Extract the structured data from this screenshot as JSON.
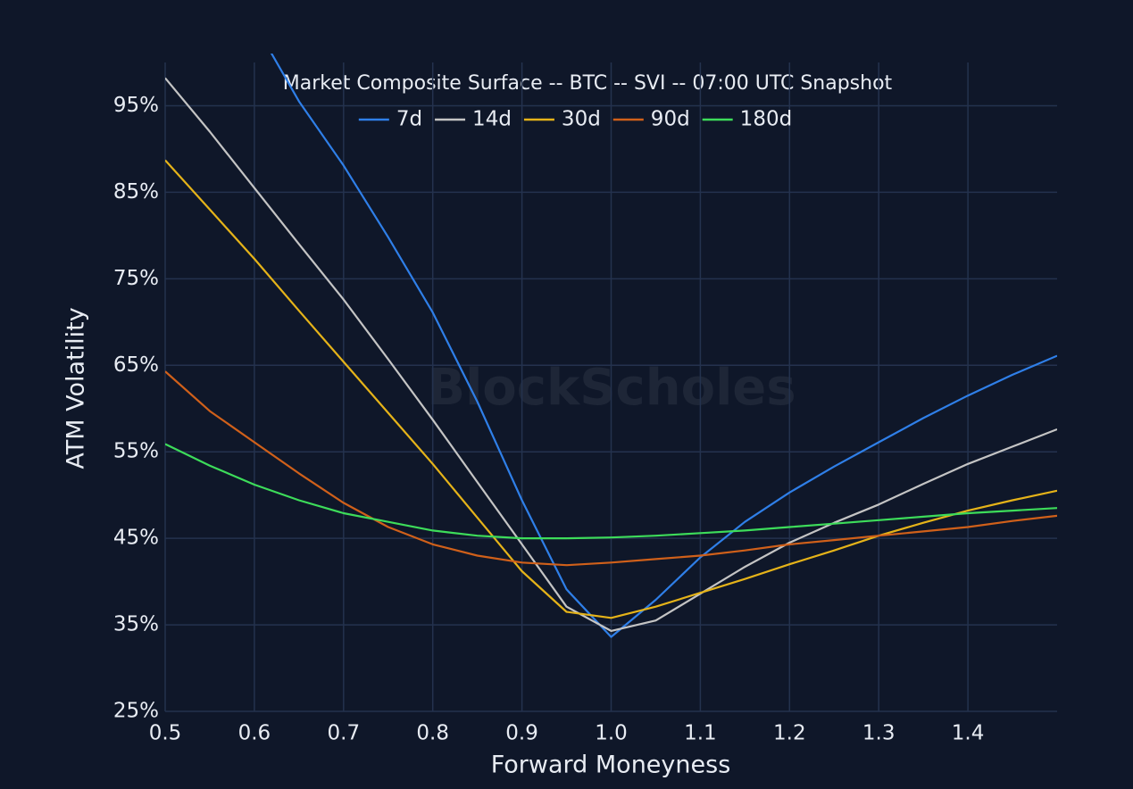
{
  "chart_data": {
    "type": "line",
    "title": "Market Composite Surface -- BTC -- SVI -- 07:00 UTC Snapshot",
    "watermark": "BlockScholes",
    "x_label": "Forward Moneyness",
    "y_label": "ATM Volatility",
    "x": [
      0.5,
      0.55,
      0.6,
      0.65,
      0.7,
      0.75,
      0.8,
      0.85,
      0.9,
      0.95,
      1.0,
      1.05,
      1.1,
      1.15,
      1.2,
      1.25,
      1.3,
      1.35,
      1.4,
      1.45,
      1.5
    ],
    "series": [
      {
        "name": "7d",
        "color": "#2f7fe8",
        "values": [
          null,
          null,
          104.5,
          95.5,
          88.1,
          79.8,
          71.1,
          60.8,
          49.4,
          39.1,
          33.6,
          37.9,
          42.8,
          46.9,
          50.3,
          53.3,
          56.1,
          58.9,
          61.5,
          63.9,
          66.1
        ]
      },
      {
        "name": "14d",
        "color": "#c4c4c4",
        "values": [
          98.2,
          92.0,
          85.5,
          79.0,
          72.6,
          65.7,
          58.7,
          51.5,
          44.3,
          37.1,
          34.3,
          35.5,
          38.6,
          41.7,
          44.5,
          46.8,
          48.9,
          51.3,
          53.6,
          55.6,
          57.6
        ]
      },
      {
        "name": "30d",
        "color": "#e5b319",
        "values": [
          88.7,
          83.0,
          77.3,
          71.3,
          65.4,
          59.5,
          53.6,
          47.4,
          41.2,
          36.5,
          35.8,
          37.1,
          38.7,
          40.3,
          42.0,
          43.6,
          45.3,
          46.8,
          48.2,
          49.4,
          50.5
        ]
      },
      {
        "name": "90d",
        "color": "#d0601a",
        "values": [
          64.3,
          59.7,
          56.1,
          52.5,
          49.1,
          46.3,
          44.3,
          43.0,
          42.2,
          41.9,
          42.2,
          42.6,
          43.0,
          43.6,
          44.3,
          44.8,
          45.3,
          45.8,
          46.3,
          47.0,
          47.6
        ]
      },
      {
        "name": "180d",
        "color": "#3ddc5a",
        "values": [
          55.9,
          53.4,
          51.2,
          49.4,
          47.9,
          46.9,
          45.9,
          45.3,
          45.0,
          45.0,
          45.1,
          45.3,
          45.6,
          45.9,
          46.3,
          46.7,
          47.1,
          47.5,
          47.9,
          48.2,
          48.5
        ]
      }
    ],
    "xlim": [
      0.5,
      1.5
    ],
    "ylim": [
      25,
      100
    ],
    "xticks": [
      0.5,
      0.6,
      0.7,
      0.8,
      0.9,
      {
        "value": 1,
        "label": "1.0"
      },
      1.1,
      1.2,
      1.3,
      1.4
    ],
    "yticks": [
      {
        "value": 25,
        "label": "25%"
      },
      {
        "value": 35,
        "label": "35%"
      },
      {
        "value": 45,
        "label": "45%"
      },
      {
        "value": 55,
        "label": "55%"
      },
      {
        "value": 65,
        "label": "65%"
      },
      {
        "value": 75,
        "label": "75%"
      },
      {
        "value": 85,
        "label": "85%"
      },
      {
        "value": 95,
        "label": "95%"
      }
    ],
    "grid": true,
    "legend": "top"
  }
}
